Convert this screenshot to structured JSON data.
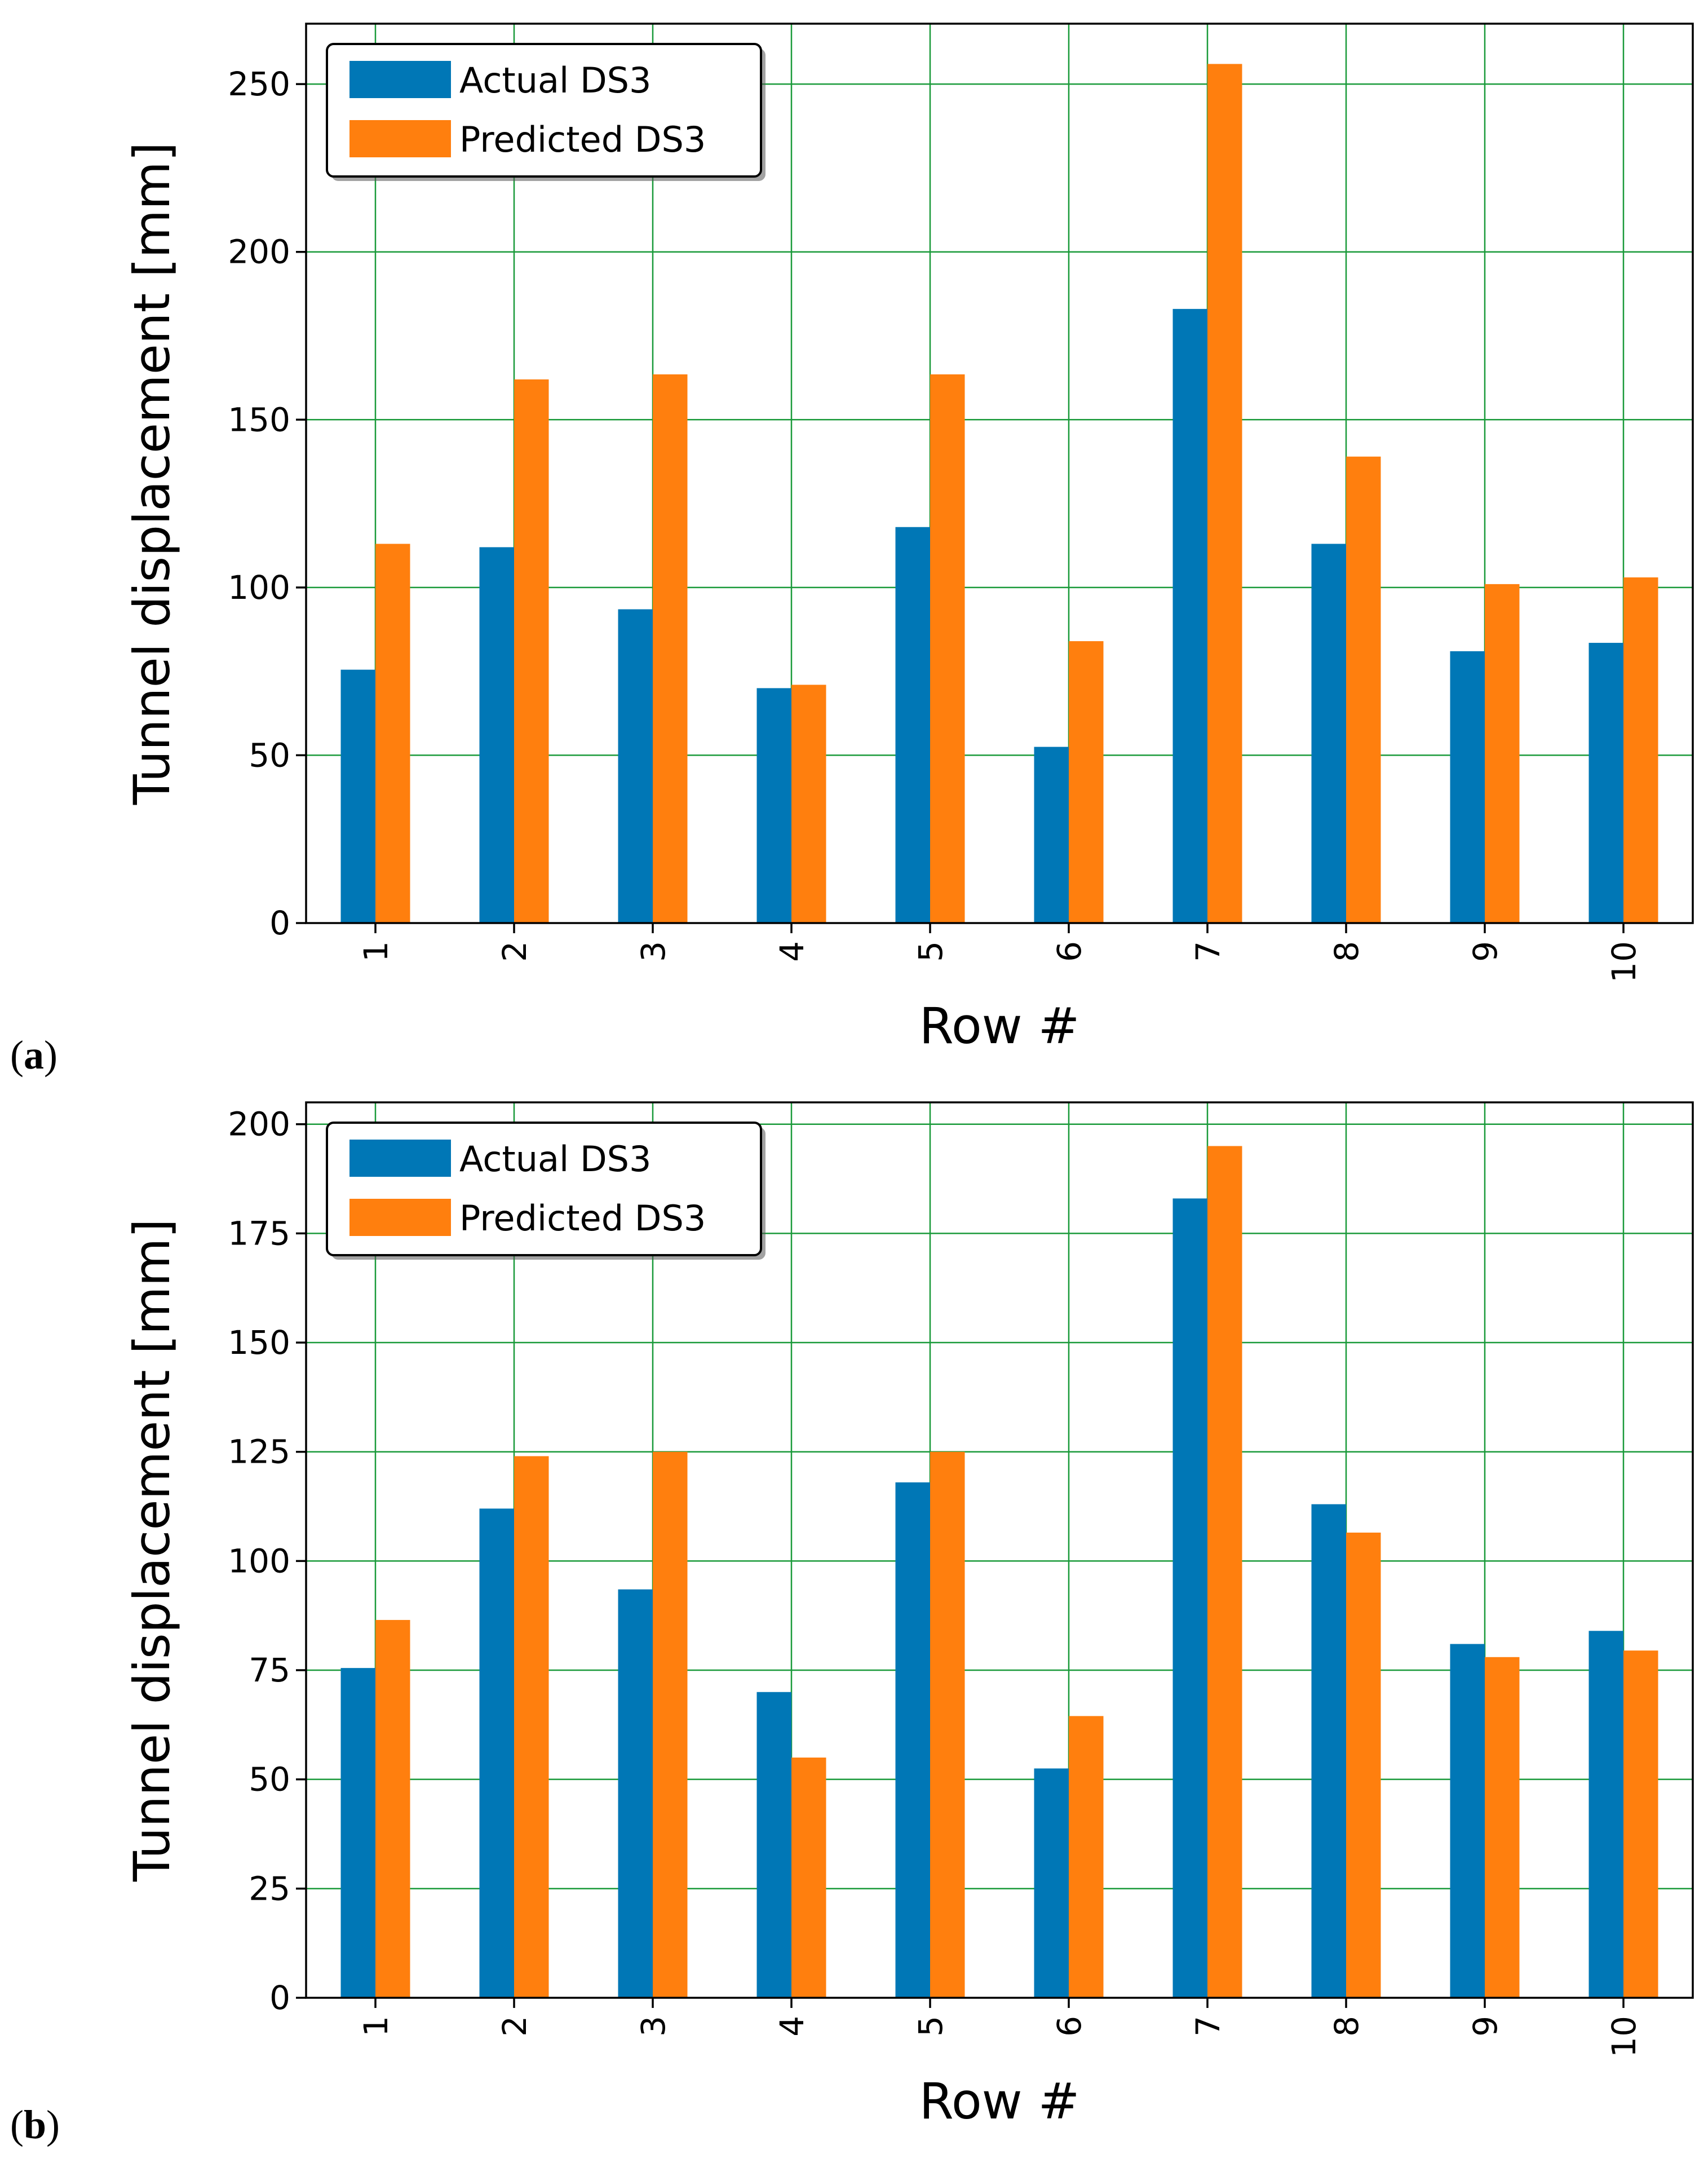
{
  "colors": {
    "actual": "#0077b6",
    "predicted": "#ff7f0e",
    "grid": "#1a9a3a"
  },
  "chart_data": [
    {
      "panel_label": "(a)",
      "panel_label_prefix": "(",
      "panel_label_letter": "a",
      "panel_label_suffix": ")",
      "type": "bar",
      "xlabel": "Row #",
      "ylabel": "Tunnel displacement [mm]",
      "categories": [
        "1",
        "2",
        "3",
        "4",
        "5",
        "6",
        "7",
        "8",
        "9",
        "10"
      ],
      "ylim": [
        0,
        268
      ],
      "yticks": [
        0,
        50,
        100,
        150,
        200,
        250
      ],
      "grid": true,
      "legend_position": "top-left",
      "series": [
        {
          "name": "Actual DS3",
          "values": [
            75.5,
            112,
            93.5,
            70,
            118,
            52.5,
            183,
            113,
            81,
            83.5
          ]
        },
        {
          "name": "Predicted DS3",
          "values": [
            113,
            162,
            163.5,
            71,
            163.5,
            84,
            256,
            139,
            101,
            103
          ]
        }
      ]
    },
    {
      "panel_label": "(b)",
      "panel_label_prefix": "(",
      "panel_label_letter": "b",
      "panel_label_suffix": ")",
      "type": "bar",
      "xlabel": "Row #",
      "ylabel": "Tunnel displacement [mm]",
      "categories": [
        "1",
        "2",
        "3",
        "4",
        "5",
        "6",
        "7",
        "8",
        "9",
        "10"
      ],
      "ylim": [
        0,
        205
      ],
      "yticks": [
        0,
        25,
        50,
        75,
        100,
        125,
        150,
        175,
        200
      ],
      "grid": true,
      "legend_position": "top-left",
      "series": [
        {
          "name": "Actual DS3",
          "values": [
            75.5,
            112,
            93.5,
            70,
            118,
            52.5,
            183,
            113,
            81,
            84
          ]
        },
        {
          "name": "Predicted DS3",
          "values": [
            86.5,
            124,
            125,
            55,
            125,
            64.5,
            195,
            106.5,
            78,
            79.5
          ]
        }
      ]
    }
  ]
}
